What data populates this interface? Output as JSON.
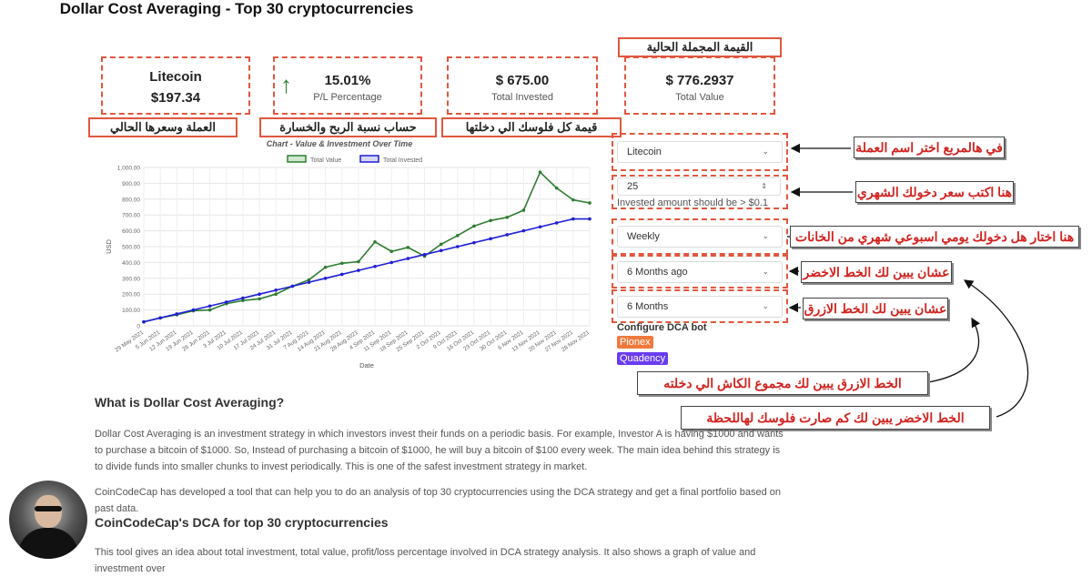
{
  "page_title": "Dollar Cost Averaging - Top 30 cryptocurrencies",
  "stats": {
    "coin_name": "Litecoin",
    "coin_price": "$197.34",
    "pl_value": "15.01%",
    "pl_label": "P/L Percentage",
    "pl_arrow": "↑",
    "invested_value": "$ 675.00",
    "invested_label": "Total Invested",
    "total_value": "$ 776.2937",
    "total_value_label": "Total Value"
  },
  "annotations": {
    "total_value_ar": "القيمة المجملة الحالية",
    "coin_ar": "العملة وسعرها الحالي",
    "pl_ar": "حساب نسبة الربح والخسارة",
    "invested_ar": "قيمة كل فلوسك الي دخلتها",
    "coin_select_ar": "في هالمربع اختر اسم العملة",
    "amount_ar": "هنا اكتب سعر دخولك الشهري",
    "frequency_ar": "هنا اختار هل دخولك يومي اسبوعي شهري من الخانات",
    "start_ar": "عشان يبين لك الخط الاخضر",
    "duration_ar": "عشان يبين لك الخط الازرق",
    "blue_line_ar": "الخط الازرق يبين لك مجموع الكاش الي دخلته",
    "green_line_ar": "الخط الاخضر يبين لك كم صارت فلوسك لهاللحظة"
  },
  "form": {
    "coin_select": "Litecoin",
    "amount_value": "25",
    "amount_hint": "Invested amount should be > $0.1",
    "frequency_select": "Weekly",
    "start_select": "6 Months ago",
    "duration_select": "6 Months",
    "configure_label": "Configure DCA bot",
    "pionex_label": "Pionex",
    "quadency_label": "Quadency"
  },
  "content": {
    "heading1": "What is Dollar Cost Averaging?",
    "para1": "Dollar Cost Averaging is an investment strategy in which investors invest their funds on a periodic basis. For example, Investor A is having $1000 and wants to purchase a bitcoin of $1000. So, Instead of purchasing a bitcoin of $1000, he will buy a bitcoin of $100 every week. The main idea behind this strategy is to divide funds into smaller chunks to invest periodically. This is one of the safest investment strategy in market.",
    "para2": "CoinCodeCap has developed a tool that can help you to do an analysis of top 30 cryptocurrencies using the DCA strategy and get a final portfolio based on past data.",
    "heading2": "CoinCodeCap's DCA for top 30 cryptocurrencies",
    "para3": "This tool gives an idea about total investment, total value, profit/loss percentage involved in DCA strategy analysis. It also shows a graph of value and investment over"
  },
  "colors": {
    "accent_red": "#e0573f",
    "green": "#2e7d32",
    "blue": "#1f1fd6",
    "pionex": "#f07a3c",
    "quadency": "#6a3cf0"
  },
  "chart_data": {
    "type": "line",
    "title": "Chart - Value & Investment Over Time",
    "xlabel": "Date",
    "ylabel": "USD",
    "ylim": [
      0,
      1000
    ],
    "yticks": [
      "0",
      "100.00",
      "200.00",
      "300.00",
      "400.00",
      "500.00",
      "600.00",
      "700.00",
      "800.00",
      "900.00",
      "1,000.00"
    ],
    "legend_position": "top",
    "categories": [
      "29 May 2021",
      "5 Jun 2021",
      "12 Jun 2021",
      "19 Jun 2021",
      "26 Jun 2021",
      "3 Jul 2021",
      "10 Jul 2021",
      "17 Jul 2021",
      "24 Jul 2021",
      "31 Jul 2021",
      "7 Aug 2021",
      "14 Aug 2021",
      "21 Aug 2021",
      "28 Aug 2021",
      "4 Sep 2021",
      "11 Sep 2021",
      "18 Sep 2021",
      "25 Sep 2021",
      "2 Oct 2021",
      "9 Oct 2021",
      "16 Oct 2021",
      "23 Oct 2021",
      "30 Oct 2021",
      "6 Nov 2021",
      "13 Nov 2021",
      "20 Nov 2021",
      "27 Nov 2021",
      "28 Nov 2021"
    ],
    "series": [
      {
        "name": "Total Value",
        "color": "#2e7d32",
        "values": [
          25,
          50,
          70,
          95,
          100,
          140,
          160,
          170,
          200,
          250,
          290,
          370,
          395,
          405,
          530,
          470,
          495,
          440,
          515,
          570,
          630,
          665,
          685,
          730,
          970,
          870,
          795,
          776
        ]
      },
      {
        "name": "Total Invested",
        "color": "#1f1fd6",
        "values": [
          25,
          50,
          75,
          100,
          125,
          150,
          175,
          200,
          225,
          250,
          275,
          300,
          325,
          350,
          375,
          400,
          425,
          450,
          475,
          500,
          525,
          550,
          575,
          600,
          625,
          650,
          675,
          675
        ]
      }
    ]
  }
}
